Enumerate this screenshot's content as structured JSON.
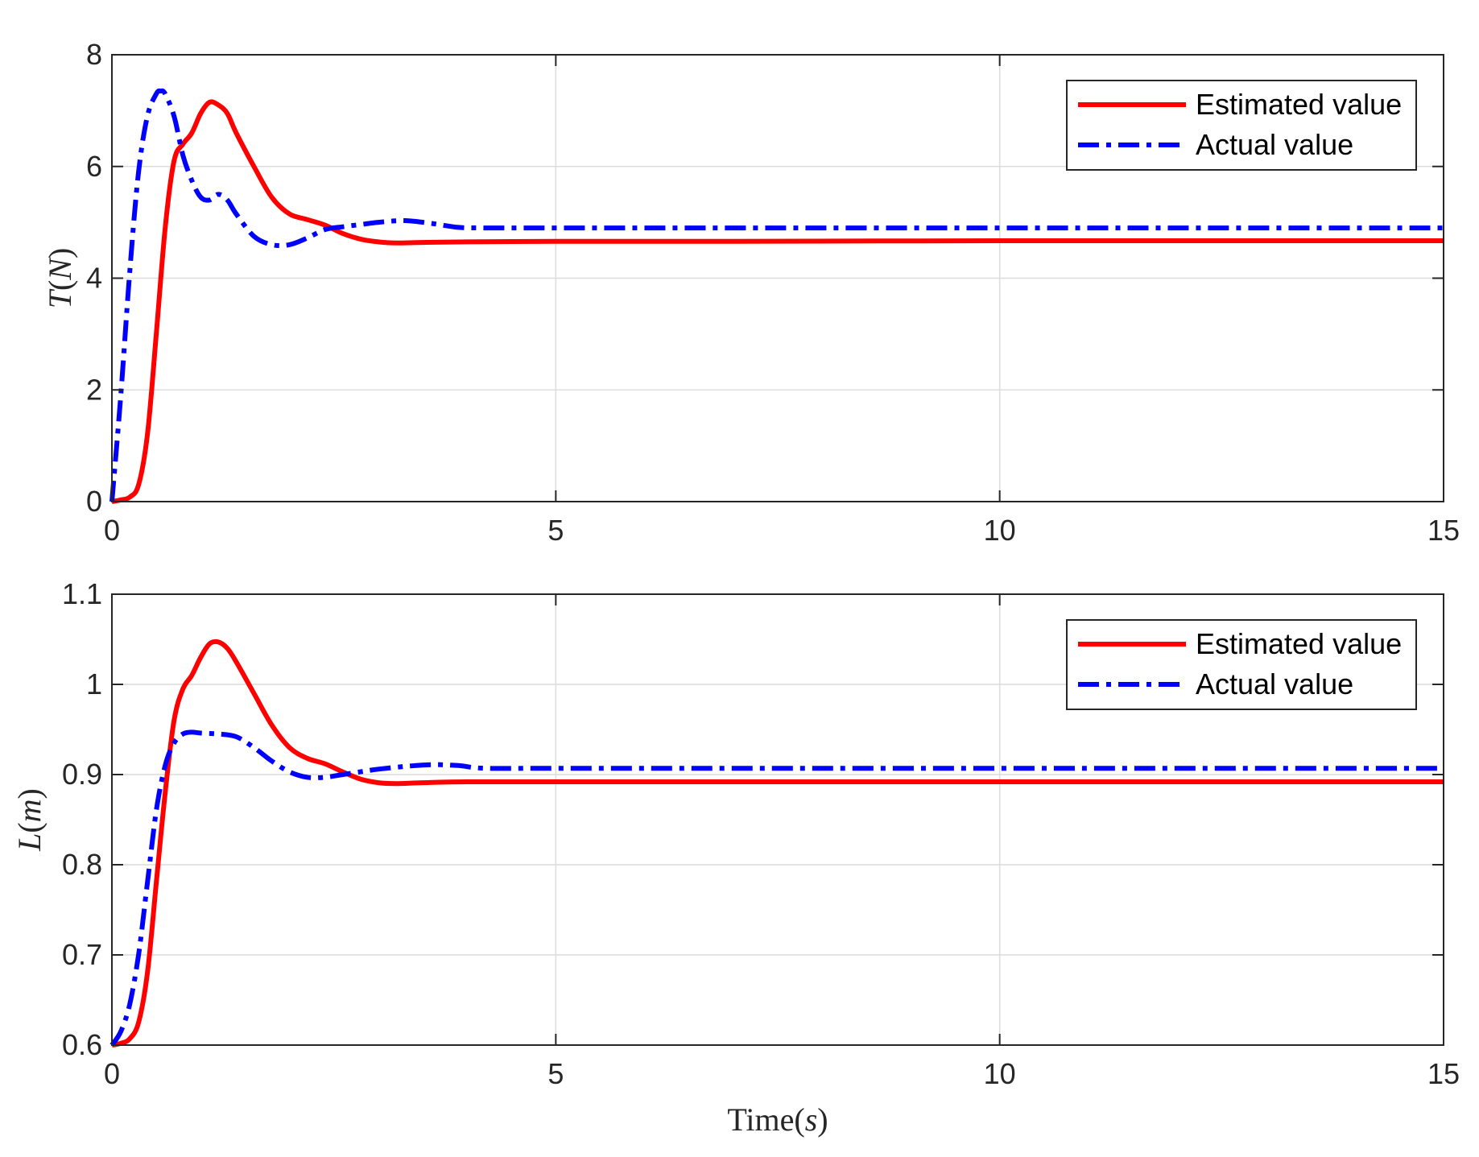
{
  "chart_data": [
    {
      "type": "line",
      "ylabel": {
        "main": "T",
        "unit_open": "(",
        "unit": "N",
        "unit_close": ")"
      },
      "xlabel": null,
      "xlim": [
        0,
        15
      ],
      "ylim": [
        0,
        8
      ],
      "xticks": [
        "0",
        "5",
        "10",
        "15"
      ],
      "yticks": [
        "0",
        "2",
        "4",
        "6",
        "8"
      ],
      "grid": true,
      "legend_position": "top-right",
      "series": [
        {
          "name": "Estimated value",
          "color": "#ff0000",
          "style": "solid",
          "x": [
            0,
            0.1,
            0.2,
            0.3,
            0.4,
            0.5,
            0.6,
            0.7,
            0.8,
            0.9,
            1.0,
            1.1,
            1.2,
            1.3,
            1.4,
            1.6,
            1.8,
            2.0,
            2.2,
            2.4,
            2.6,
            2.8,
            3.0,
            3.2,
            3.5,
            4.0,
            5,
            7,
            10,
            12.5,
            15
          ],
          "y": [
            0,
            0.03,
            0.08,
            0.3,
            1.2,
            3.0,
            4.9,
            6.1,
            6.4,
            6.6,
            6.95,
            7.15,
            7.1,
            6.95,
            6.6,
            6.0,
            5.45,
            5.15,
            5.05,
            4.95,
            4.8,
            4.7,
            4.65,
            4.63,
            4.64,
            4.65,
            4.66,
            4.66,
            4.67,
            4.67,
            4.67
          ]
        },
        {
          "name": "Actual value",
          "color": "#0000ff",
          "style": "dashdot",
          "x": [
            0,
            0.1,
            0.2,
            0.3,
            0.4,
            0.5,
            0.55,
            0.6,
            0.7,
            0.8,
            0.9,
            1.0,
            1.1,
            1.2,
            1.3,
            1.4,
            1.6,
            1.8,
            2.0,
            2.2,
            2.4,
            2.6,
            2.8,
            3.0,
            3.3,
            3.6,
            3.9,
            4.2,
            5,
            7,
            10,
            12.5,
            15
          ],
          "y": [
            0,
            1.9,
            4.1,
            5.9,
            6.9,
            7.3,
            7.35,
            7.3,
            6.9,
            6.2,
            5.75,
            5.45,
            5.4,
            5.5,
            5.4,
            5.15,
            4.75,
            4.6,
            4.6,
            4.72,
            4.87,
            4.92,
            4.96,
            5.0,
            5.03,
            4.98,
            4.91,
            4.9,
            4.9,
            4.9,
            4.9,
            4.9,
            4.9
          ]
        }
      ]
    },
    {
      "type": "line",
      "ylabel": {
        "main": "L",
        "unit_open": "(",
        "unit": "m",
        "unit_close": ")"
      },
      "xlabel": {
        "main": "Time",
        "unit_open": "(",
        "unit": "s",
        "unit_close": ")"
      },
      "xlim": [
        0,
        15
      ],
      "ylim": [
        0.6,
        1.1
      ],
      "xticks": [
        "0",
        "5",
        "10",
        "15"
      ],
      "yticks": [
        "0.6",
        "0.7",
        "0.8",
        "0.9",
        "1",
        "1.1"
      ],
      "grid": true,
      "legend_position": "top-right",
      "series": [
        {
          "name": "Estimated value",
          "color": "#ff0000",
          "style": "solid",
          "x": [
            0,
            0.1,
            0.2,
            0.3,
            0.4,
            0.5,
            0.6,
            0.7,
            0.8,
            0.9,
            1.0,
            1.1,
            1.2,
            1.3,
            1.4,
            1.6,
            1.8,
            2.0,
            2.2,
            2.4,
            2.6,
            2.8,
            3.0,
            3.2,
            3.5,
            4.0,
            5,
            7,
            10,
            12.5,
            15
          ],
          "y": [
            0.6,
            0.602,
            0.607,
            0.625,
            0.68,
            0.78,
            0.88,
            0.96,
            0.995,
            1.01,
            1.03,
            1.045,
            1.047,
            1.04,
            1.025,
            0.99,
            0.955,
            0.93,
            0.918,
            0.912,
            0.903,
            0.895,
            0.891,
            0.89,
            0.891,
            0.892,
            0.892,
            0.892,
            0.892,
            0.892,
            0.892
          ]
        },
        {
          "name": "Actual value",
          "color": "#0000ff",
          "style": "dashdot",
          "x": [
            0,
            0.1,
            0.2,
            0.3,
            0.4,
            0.5,
            0.6,
            0.7,
            0.8,
            0.9,
            1.0,
            1.2,
            1.4,
            1.6,
            1.8,
            2.0,
            2.2,
            2.4,
            2.6,
            2.8,
            3.0,
            3.3,
            3.6,
            3.9,
            4.2,
            5,
            7,
            10,
            12.5,
            15
          ],
          "y": [
            0.6,
            0.615,
            0.645,
            0.7,
            0.78,
            0.86,
            0.91,
            0.935,
            0.945,
            0.947,
            0.946,
            0.945,
            0.942,
            0.93,
            0.915,
            0.903,
            0.897,
            0.897,
            0.9,
            0.903,
            0.906,
            0.909,
            0.911,
            0.91,
            0.907,
            0.907,
            0.907,
            0.907,
            0.907,
            0.907
          ]
        }
      ]
    }
  ]
}
